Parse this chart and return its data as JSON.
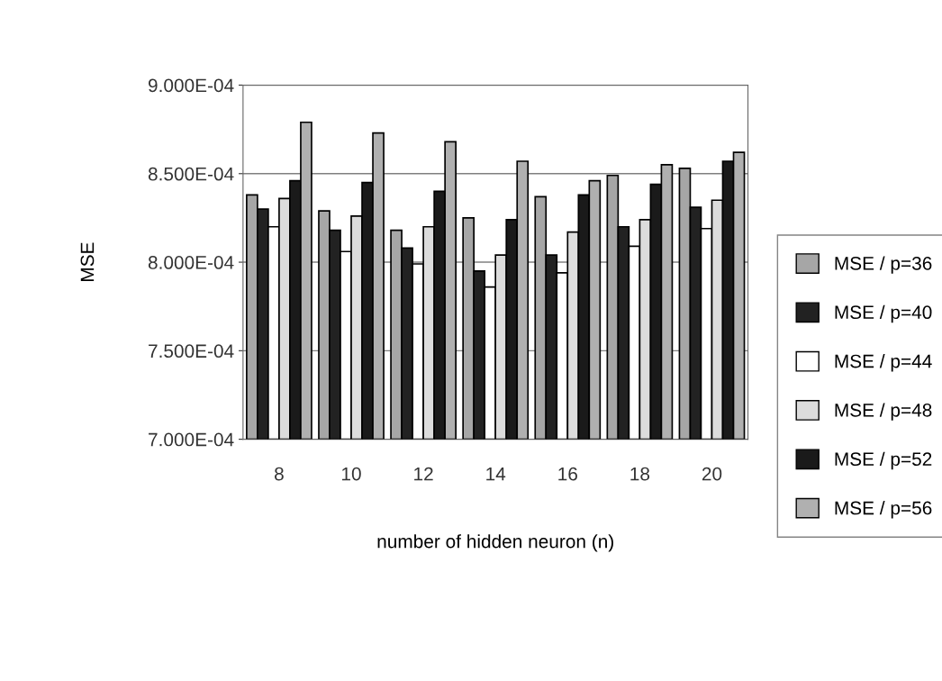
{
  "chart_data": {
    "type": "bar",
    "xlabel": "number of hidden neuron (n)",
    "ylabel": "MSE",
    "categories": [
      "8",
      "10",
      "12",
      "14",
      "16",
      "18",
      "20"
    ],
    "series": [
      {
        "name": "MSE / p=36",
        "color": "#a6a6a6",
        "values": [
          0.000838,
          0.000829,
          0.000818,
          0.000825,
          0.000837,
          0.000849,
          0.000853
        ]
      },
      {
        "name": "MSE / p=40",
        "color": "#222222",
        "values": [
          0.00083,
          0.000818,
          0.000808,
          0.000795,
          0.000804,
          0.00082,
          0.000831
        ]
      },
      {
        "name": "MSE / p=44",
        "color": "#ffffff",
        "values": [
          0.00082,
          0.000806,
          0.000799,
          0.000786,
          0.000794,
          0.000809,
          0.000819
        ]
      },
      {
        "name": "MSE / p=48",
        "color": "#dcdcdc",
        "values": [
          0.000836,
          0.000826,
          0.00082,
          0.000804,
          0.000817,
          0.000824,
          0.000835
        ]
      },
      {
        "name": "MSE / p=52",
        "color": "#1a1a1a",
        "values": [
          0.000846,
          0.000845,
          0.00084,
          0.000824,
          0.000838,
          0.000844,
          0.000857
        ]
      },
      {
        "name": "MSE / p=56",
        "color": "#b0b0b0",
        "values": [
          0.000879,
          0.000873,
          0.000868,
          0.000857,
          0.000846,
          0.000855,
          0.000862
        ]
      }
    ],
    "ylim": [
      0.0007,
      0.0009
    ],
    "yticks": [
      {
        "value": 0.0007,
        "label": "7.000E-04"
      },
      {
        "value": 0.00075,
        "label": "7.500E-04"
      },
      {
        "value": 0.0008,
        "label": "8.000E-04"
      },
      {
        "value": 0.00085,
        "label": "8.500E-04"
      },
      {
        "value": 0.0009,
        "label": "9.000E-04"
      }
    ],
    "grid": "y",
    "legend": "right"
  }
}
